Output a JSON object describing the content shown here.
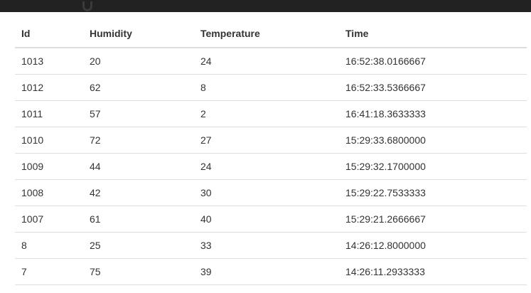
{
  "table": {
    "headers": [
      "Id",
      "Humidity",
      "Temperature",
      "Time"
    ],
    "rows": [
      [
        "1013",
        "20",
        "24",
        "16:52:38.0166667"
      ],
      [
        "1012",
        "62",
        "8",
        "16:52:33.5366667"
      ],
      [
        "1011",
        "57",
        "2",
        "16:41:18.3633333"
      ],
      [
        "1010",
        "72",
        "27",
        "15:29:33.6800000"
      ],
      [
        "1009",
        "44",
        "24",
        "15:29:32.1700000"
      ],
      [
        "1008",
        "42",
        "30",
        "15:29:22.7533333"
      ],
      [
        "1007",
        "61",
        "40",
        "15:29:21.2666667"
      ],
      [
        "8",
        "25",
        "33",
        "14:26:12.8000000"
      ],
      [
        "7",
        "75",
        "39",
        "14:26:11.2933333"
      ]
    ]
  }
}
